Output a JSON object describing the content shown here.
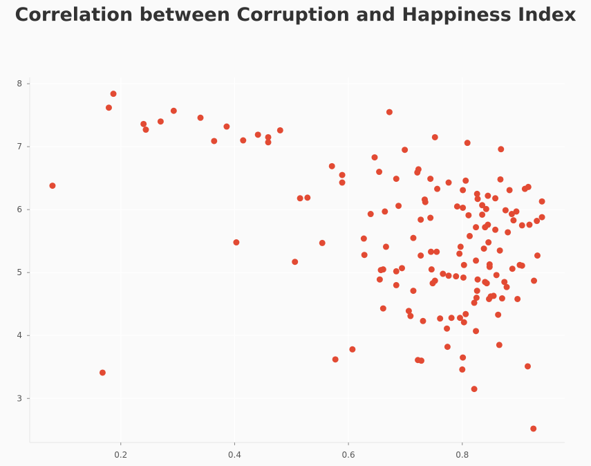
{
  "chart_data": {
    "type": "scatter",
    "title": "Correlation between Corruption and Happiness Index",
    "xlabel": "",
    "ylabel": "",
    "xlim": [
      0.04,
      0.98
    ],
    "ylim": [
      2.3,
      8.1
    ],
    "xticks": [
      0.2,
      0.4,
      0.6,
      0.8
    ],
    "yticks": [
      3,
      4,
      5,
      6,
      7,
      8
    ],
    "xtick_labels": [
      "0.2",
      "0.4",
      "0.6",
      "0.8"
    ],
    "ytick_labels": [
      "3",
      "4",
      "5",
      "6",
      "7",
      "8"
    ],
    "grid": true,
    "point_color": "#e24a33",
    "background": "#fafafa",
    "points": [
      {
        "x": 0.187,
        "y": 7.84
      },
      {
        "x": 0.179,
        "y": 7.62
      },
      {
        "x": 0.293,
        "y": 7.57
      },
      {
        "x": 0.24,
        "y": 7.36
      },
      {
        "x": 0.244,
        "y": 7.27
      },
      {
        "x": 0.27,
        "y": 7.4
      },
      {
        "x": 0.34,
        "y": 7.46
      },
      {
        "x": 0.386,
        "y": 7.32
      },
      {
        "x": 0.364,
        "y": 7.09
      },
      {
        "x": 0.415,
        "y": 7.1
      },
      {
        "x": 0.441,
        "y": 7.19
      },
      {
        "x": 0.459,
        "y": 7.15
      },
      {
        "x": 0.459,
        "y": 7.07
      },
      {
        "x": 0.48,
        "y": 7.26
      },
      {
        "x": 0.08,
        "y": 6.38
      },
      {
        "x": 0.403,
        "y": 5.48
      },
      {
        "x": 0.168,
        "y": 3.41
      },
      {
        "x": 0.515,
        "y": 6.18
      },
      {
        "x": 0.528,
        "y": 6.19
      },
      {
        "x": 0.571,
        "y": 6.69
      },
      {
        "x": 0.589,
        "y": 6.55
      },
      {
        "x": 0.589,
        "y": 6.43
      },
      {
        "x": 0.506,
        "y": 5.17
      },
      {
        "x": 0.554,
        "y": 5.47
      },
      {
        "x": 0.577,
        "y": 3.62
      },
      {
        "x": 0.607,
        "y": 3.78
      },
      {
        "x": 0.672,
        "y": 7.55
      },
      {
        "x": 0.646,
        "y": 6.83
      },
      {
        "x": 0.699,
        "y": 6.95
      },
      {
        "x": 0.752,
        "y": 7.15
      },
      {
        "x": 0.809,
        "y": 7.06
      },
      {
        "x": 0.868,
        "y": 6.96
      },
      {
        "x": 0.654,
        "y": 6.6
      },
      {
        "x": 0.684,
        "y": 6.49
      },
      {
        "x": 0.721,
        "y": 6.59
      },
      {
        "x": 0.723,
        "y": 6.64
      },
      {
        "x": 0.744,
        "y": 6.49
      },
      {
        "x": 0.756,
        "y": 6.33
      },
      {
        "x": 0.776,
        "y": 6.43
      },
      {
        "x": 0.801,
        "y": 6.31
      },
      {
        "x": 0.806,
        "y": 6.46
      },
      {
        "x": 0.826,
        "y": 6.25
      },
      {
        "x": 0.845,
        "y": 6.22
      },
      {
        "x": 0.858,
        "y": 6.18
      },
      {
        "x": 0.867,
        "y": 6.48
      },
      {
        "x": 0.883,
        "y": 6.31
      },
      {
        "x": 0.91,
        "y": 6.33
      },
      {
        "x": 0.916,
        "y": 6.36
      },
      {
        "x": 0.639,
        "y": 5.93
      },
      {
        "x": 0.664,
        "y": 5.97
      },
      {
        "x": 0.688,
        "y": 6.06
      },
      {
        "x": 0.734,
        "y": 6.16
      },
      {
        "x": 0.735,
        "y": 6.12
      },
      {
        "x": 0.727,
        "y": 5.84
      },
      {
        "x": 0.744,
        "y": 5.87
      },
      {
        "x": 0.791,
        "y": 6.05
      },
      {
        "x": 0.801,
        "y": 6.03
      },
      {
        "x": 0.811,
        "y": 5.91
      },
      {
        "x": 0.827,
        "y": 6.17
      },
      {
        "x": 0.835,
        "y": 6.07
      },
      {
        "x": 0.842,
        "y": 6.01
      },
      {
        "x": 0.835,
        "y": 5.92
      },
      {
        "x": 0.876,
        "y": 5.99
      },
      {
        "x": 0.887,
        "y": 5.93
      },
      {
        "x": 0.895,
        "y": 5.97
      },
      {
        "x": 0.89,
        "y": 5.83
      },
      {
        "x": 0.905,
        "y": 5.75
      },
      {
        "x": 0.918,
        "y": 5.76
      },
      {
        "x": 0.931,
        "y": 5.82
      },
      {
        "x": 0.94,
        "y": 6.13
      },
      {
        "x": 0.94,
        "y": 5.88
      },
      {
        "x": 0.824,
        "y": 5.72
      },
      {
        "x": 0.84,
        "y": 5.72
      },
      {
        "x": 0.845,
        "y": 5.76
      },
      {
        "x": 0.858,
        "y": 5.68
      },
      {
        "x": 0.88,
        "y": 5.64
      },
      {
        "x": 0.813,
        "y": 5.58
      },
      {
        "x": 0.846,
        "y": 5.48
      },
      {
        "x": 0.838,
        "y": 5.38
      },
      {
        "x": 0.866,
        "y": 5.35
      },
      {
        "x": 0.627,
        "y": 5.54
      },
      {
        "x": 0.628,
        "y": 5.28
      },
      {
        "x": 0.666,
        "y": 5.41
      },
      {
        "x": 0.714,
        "y": 5.55
      },
      {
        "x": 0.727,
        "y": 5.27
      },
      {
        "x": 0.745,
        "y": 5.33
      },
      {
        "x": 0.755,
        "y": 5.33
      },
      {
        "x": 0.797,
        "y": 5.41
      },
      {
        "x": 0.795,
        "y": 5.3
      },
      {
        "x": 0.803,
        "y": 5.12
      },
      {
        "x": 0.824,
        "y": 5.19
      },
      {
        "x": 0.848,
        "y": 5.13
      },
      {
        "x": 0.848,
        "y": 5.09
      },
      {
        "x": 0.888,
        "y": 5.06
      },
      {
        "x": 0.901,
        "y": 5.12
      },
      {
        "x": 0.905,
        "y": 5.11
      },
      {
        "x": 0.932,
        "y": 5.27
      },
      {
        "x": 0.657,
        "y": 5.04
      },
      {
        "x": 0.661,
        "y": 5.05
      },
      {
        "x": 0.694,
        "y": 5.07
      },
      {
        "x": 0.684,
        "y": 5.02
      },
      {
        "x": 0.746,
        "y": 5.05
      },
      {
        "x": 0.766,
        "y": 4.98
      },
      {
        "x": 0.776,
        "y": 4.95
      },
      {
        "x": 0.789,
        "y": 4.94
      },
      {
        "x": 0.802,
        "y": 4.92
      },
      {
        "x": 0.827,
        "y": 4.89
      },
      {
        "x": 0.84,
        "y": 4.85
      },
      {
        "x": 0.843,
        "y": 4.83
      },
      {
        "x": 0.86,
        "y": 4.96
      },
      {
        "x": 0.874,
        "y": 4.85
      },
      {
        "x": 0.878,
        "y": 4.77
      },
      {
        "x": 0.926,
        "y": 4.87
      },
      {
        "x": 0.655,
        "y": 4.89
      },
      {
        "x": 0.684,
        "y": 4.8
      },
      {
        "x": 0.714,
        "y": 4.71
      },
      {
        "x": 0.752,
        "y": 4.87
      },
      {
        "x": 0.748,
        "y": 4.83
      },
      {
        "x": 0.826,
        "y": 4.71
      },
      {
        "x": 0.847,
        "y": 4.58
      },
      {
        "x": 0.85,
        "y": 4.62
      },
      {
        "x": 0.855,
        "y": 4.63
      },
      {
        "x": 0.87,
        "y": 4.59
      },
      {
        "x": 0.897,
        "y": 4.58
      },
      {
        "x": 0.825,
        "y": 4.6
      },
      {
        "x": 0.821,
        "y": 4.52
      },
      {
        "x": 0.661,
        "y": 4.43
      },
      {
        "x": 0.706,
        "y": 4.39
      },
      {
        "x": 0.709,
        "y": 4.31
      },
      {
        "x": 0.731,
        "y": 4.23
      },
      {
        "x": 0.761,
        "y": 4.27
      },
      {
        "x": 0.781,
        "y": 4.28
      },
      {
        "x": 0.796,
        "y": 4.28
      },
      {
        "x": 0.806,
        "y": 4.34
      },
      {
        "x": 0.863,
        "y": 4.33
      },
      {
        "x": 0.803,
        "y": 4.21
      },
      {
        "x": 0.773,
        "y": 4.11
      },
      {
        "x": 0.824,
        "y": 4.07
      },
      {
        "x": 0.774,
        "y": 3.82
      },
      {
        "x": 0.865,
        "y": 3.85
      },
      {
        "x": 0.722,
        "y": 3.61
      },
      {
        "x": 0.728,
        "y": 3.6
      },
      {
        "x": 0.801,
        "y": 3.65
      },
      {
        "x": 0.8,
        "y": 3.46
      },
      {
        "x": 0.915,
        "y": 3.51
      },
      {
        "x": 0.821,
        "y": 3.15
      },
      {
        "x": 0.925,
        "y": 2.52
      }
    ]
  }
}
